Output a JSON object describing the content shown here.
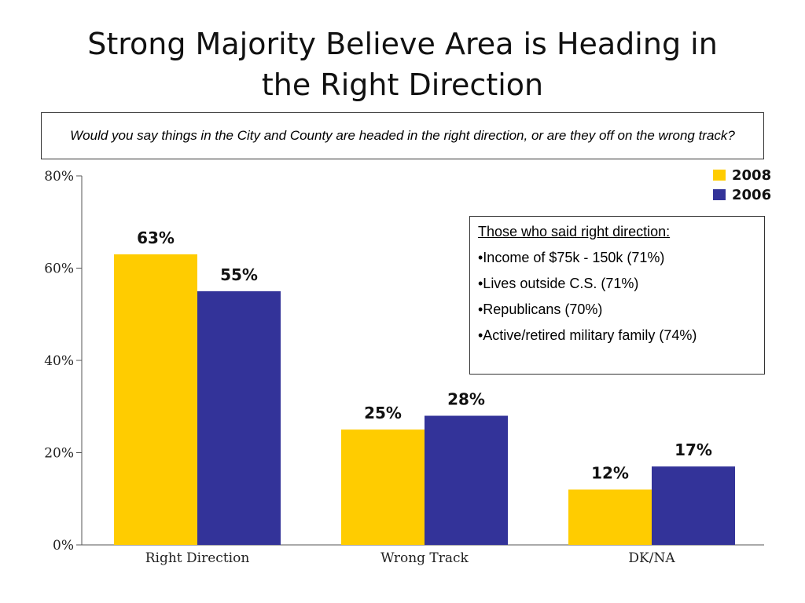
{
  "slide": {
    "title_line1": "Strong Majority Believe Area is Heading in",
    "title_line2": "the Right Direction",
    "question": "Would you say things in the City and County are headed in the right direction, or are they off on the wrong track?"
  },
  "note": {
    "heading": "Those who said right direction:",
    "items": [
      "•Income of $75k - 150k (71%)",
      "•Lives outside C.S. (71%)",
      "•Republicans (70%)",
      "•Active/retired military family (74%)"
    ]
  },
  "colors": {
    "series_2008": "#FFCC00",
    "series_2006": "#333399"
  },
  "chart_data": {
    "type": "bar",
    "categories": [
      "Right Direction",
      "Wrong Track",
      "DK/NA"
    ],
    "series": [
      {
        "name": "2008",
        "values": [
          63,
          25,
          12
        ],
        "labels": [
          "63%",
          "25%",
          "12%"
        ]
      },
      {
        "name": "2006",
        "values": [
          55,
          28,
          17
        ],
        "labels": [
          "55%",
          "28%",
          "17%"
        ]
      }
    ],
    "ylim": [
      0,
      80
    ],
    "yticks": [
      0,
      20,
      40,
      60,
      80
    ],
    "ytick_labels": [
      "0%",
      "20%",
      "40%",
      "60%",
      "80%"
    ],
    "grid": false,
    "legend": "top-right",
    "xlabel": "",
    "ylabel": ""
  }
}
